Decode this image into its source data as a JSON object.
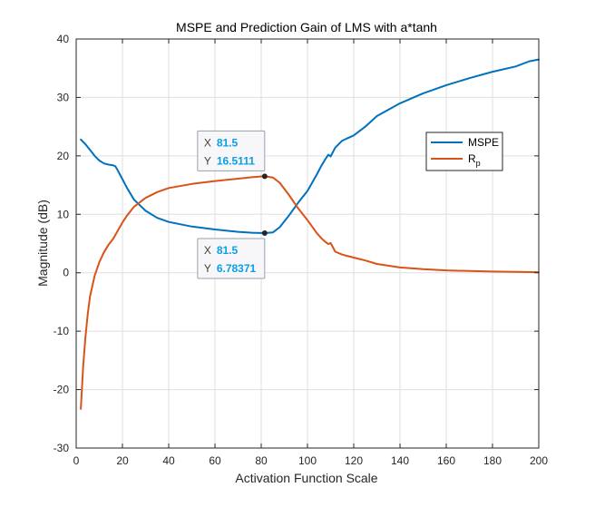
{
  "chart_data": {
    "type": "line",
    "title": "MSPE and Prediction Gain of LMS with a*tanh",
    "xlabel": "Activation Function Scale",
    "ylabel": "Magnitude (dB)",
    "xlim": [
      0,
      200
    ],
    "ylim": [
      -30,
      40
    ],
    "xticks": [
      "0",
      "20",
      "40",
      "60",
      "80",
      "100",
      "120",
      "140",
      "160",
      "180",
      "200"
    ],
    "yticks": [
      "-30",
      "-20",
      "-10",
      "0",
      "10",
      "20",
      "30",
      "40"
    ],
    "grid": true,
    "legend_position": "right",
    "series": [
      {
        "name": "MSPE",
        "color": "#0072BD",
        "x": [
          2,
          4,
          6,
          8,
          10,
          12,
          14,
          16,
          17,
          18,
          20,
          22,
          25,
          30,
          35,
          40,
          50,
          60,
          70,
          76,
          81.5,
          85,
          88,
          92,
          96,
          100,
          104,
          106,
          108,
          109,
          110,
          112,
          115,
          120,
          125,
          130,
          140,
          150,
          160,
          170,
          180,
          190,
          196,
          200
        ],
        "y": [
          22.8,
          22.0,
          21.0,
          20.0,
          19.2,
          18.7,
          18.5,
          18.4,
          18.2,
          17.5,
          16.0,
          14.5,
          12.5,
          10.6,
          9.4,
          8.7,
          7.9,
          7.4,
          7.0,
          6.85,
          6.78371,
          6.9,
          7.8,
          9.8,
          12.0,
          14.0,
          16.8,
          18.3,
          19.6,
          20.2,
          19.9,
          21.4,
          22.6,
          23.5,
          25.0,
          26.8,
          29.0,
          30.7,
          32.1,
          33.3,
          34.4,
          35.3,
          36.2,
          36.5
        ]
      },
      {
        "name": "R_p",
        "label_main": "R",
        "label_sub": "p",
        "color": "#D95319",
        "x": [
          2,
          3,
          4,
          5,
          6,
          8,
          10,
          12,
          14,
          16,
          18,
          20,
          22,
          25,
          30,
          35,
          40,
          50,
          60,
          70,
          76,
          81.5,
          85,
          88,
          92,
          96,
          100,
          104,
          106,
          108,
          109,
          110,
          112,
          115,
          120,
          125,
          130,
          140,
          150,
          160,
          170,
          180,
          190,
          200
        ],
        "y": [
          -23.3,
          -16.0,
          -11.0,
          -7.0,
          -4.0,
          -0.5,
          1.8,
          3.5,
          4.8,
          5.8,
          7.2,
          8.6,
          9.8,
          11.3,
          12.8,
          13.8,
          14.5,
          15.2,
          15.7,
          16.1,
          16.35,
          16.5111,
          16.3,
          15.4,
          13.3,
          11.0,
          9.0,
          6.8,
          5.9,
          5.2,
          4.9,
          5.1,
          3.6,
          3.1,
          2.6,
          2.1,
          1.5,
          0.9,
          0.6,
          0.4,
          0.3,
          0.2,
          0.15,
          0.1
        ]
      }
    ],
    "datatips": [
      {
        "series": "R_p",
        "x_label": "X",
        "x_value": "81.5",
        "y_label": "Y",
        "y_value": "16.5111",
        "x": 81.5,
        "y": 16.5111,
        "placement": "above"
      },
      {
        "series": "MSPE",
        "x_label": "X",
        "x_value": "81.5",
        "y_label": "Y",
        "y_value": "6.78371",
        "x": 81.5,
        "y": 6.78371,
        "placement": "below"
      }
    ]
  }
}
